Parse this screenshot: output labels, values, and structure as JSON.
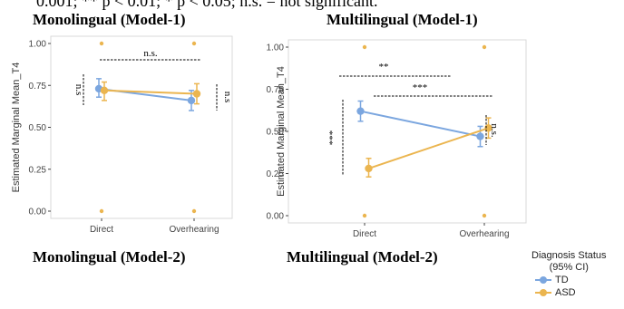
{
  "header_fragment": "0.001; ** p < 0.01; * p < 0.05; n.s. = not significant.",
  "titles": {
    "top_left": "Monolingual (Model-1)",
    "top_right": "Multilingual (Model-1)",
    "bottom_left": "Monolingual (Model-2)",
    "bottom_right": "Multilingual  (Model-2)"
  },
  "legend": {
    "title_line1": "Diagnosis Status",
    "title_line2": "(95% CI)",
    "items": [
      "TD",
      "ASD"
    ]
  },
  "colors": {
    "TD": "#7ba6df",
    "ASD": "#ebb54f"
  },
  "chart_data": [
    {
      "type": "line",
      "title": "Monolingual (Model-1)",
      "ylabel": "Estimated Marginal Mean_T4",
      "xlabel": "",
      "categories": [
        "Direct",
        "Overhearing"
      ],
      "ylim": [
        0,
        1
      ],
      "yticks": [
        "0.00",
        "0.25",
        "0.50",
        "0.75",
        "1.00"
      ],
      "series": [
        {
          "name": "TD",
          "values": [
            0.73,
            0.66
          ],
          "ci_low": [
            0.68,
            0.6
          ],
          "ci_high": [
            0.79,
            0.72
          ]
        },
        {
          "name": "ASD",
          "values": [
            0.72,
            0.7
          ],
          "ci_low": [
            0.66,
            0.64
          ],
          "ci_high": [
            0.77,
            0.76
          ]
        }
      ],
      "raw_points": {
        "ASD": [
          [
            0,
            1.0
          ],
          [
            0,
            0.0
          ],
          [
            1,
            1.0
          ],
          [
            1,
            0.0
          ]
        ]
      },
      "annotations": [
        "n.s.",
        "n.s",
        "n.s"
      ]
    },
    {
      "type": "line",
      "title": "Multilingual (Model-1)",
      "ylabel": "Estimated Marginal Mean_T4",
      "xlabel": "",
      "categories": [
        "Direct",
        "Overhearing"
      ],
      "ylim": [
        0,
        1
      ],
      "yticks": [
        "0.00",
        "0.25",
        "0.50",
        "0.75",
        "1.00"
      ],
      "series": [
        {
          "name": "TD",
          "values": [
            0.62,
            0.47
          ],
          "ci_low": [
            0.56,
            0.41
          ],
          "ci_high": [
            0.68,
            0.53
          ]
        },
        {
          "name": "ASD",
          "values": [
            0.28,
            0.52
          ],
          "ci_low": [
            0.23,
            0.46
          ],
          "ci_high": [
            0.34,
            0.58
          ]
        }
      ],
      "raw_points": {
        "ASD": [
          [
            0,
            1.0
          ],
          [
            0,
            0.0
          ],
          [
            1,
            1.0
          ],
          [
            1,
            0.0
          ]
        ]
      },
      "annotations": [
        "**",
        "***",
        "***",
        "n.s."
      ]
    }
  ]
}
